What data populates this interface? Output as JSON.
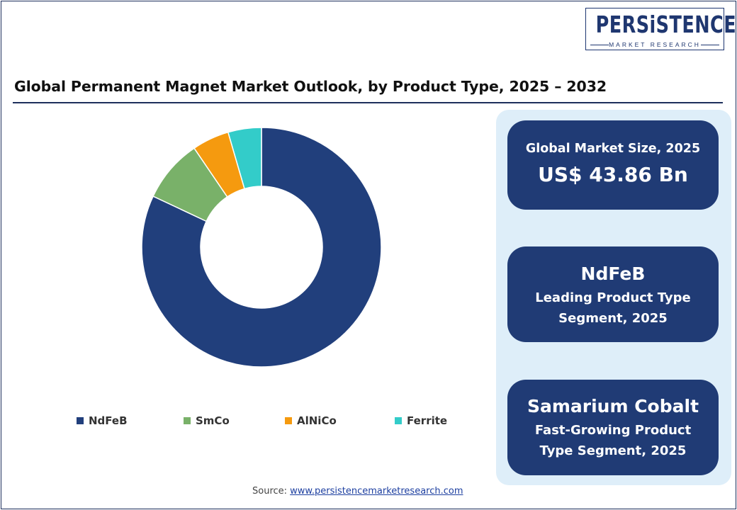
{
  "logo": {
    "main": "PERSiSTENCE",
    "sub": "MARKET RESEARCH"
  },
  "title": "Global Permanent Magnet Market Outlook, by Product Type, 2025 – 2032",
  "chart_data": {
    "type": "pie",
    "variant": "donut",
    "title": "",
    "categories": [
      "NdFeB",
      "SmCo",
      "AlNiCo",
      "Ferrite"
    ],
    "values": [
      82,
      8.5,
      5,
      4.5
    ],
    "colors": [
      "#213f7c",
      "#79b169",
      "#f59a0f",
      "#33ccc9"
    ],
    "start_angle_deg": 0,
    "direction": "clockwise",
    "legend": {
      "position": "bottom",
      "entries": [
        "NdFeB",
        "SmCo",
        "AlNiCo",
        "Ferrite"
      ]
    }
  },
  "cards": {
    "market_size": {
      "label": "Global Market Size, 2025",
      "value": "US$ 43.86 Bn"
    },
    "leading_segment": {
      "name": "NdFeB",
      "line1": "Leading Product Type",
      "line2": "Segment, 2025"
    },
    "fast_growing": {
      "name": "Samarium Cobalt",
      "line1": "Fast-Growing Product",
      "line2": "Type Segment, 2025"
    }
  },
  "source": {
    "prefix": "Source: ",
    "link": "www.persistencemarketresearch.com"
  },
  "colors": {
    "navy": "#203b75",
    "panel_bg": "#deeef9"
  }
}
